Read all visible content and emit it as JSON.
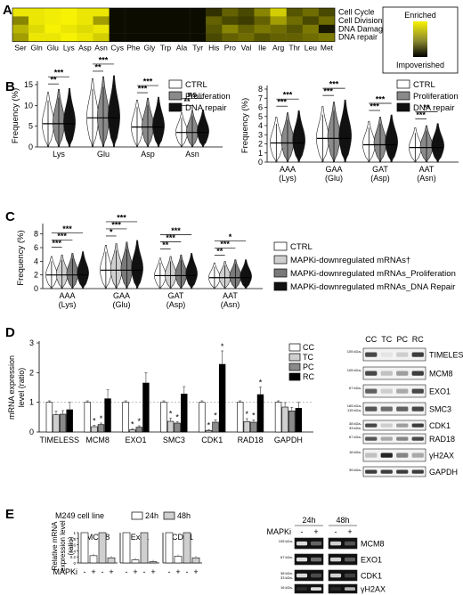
{
  "panel_letters": [
    "A",
    "B",
    "C",
    "D",
    "E"
  ],
  "panelA": {
    "amino_acids": [
      "Ser",
      "Gln",
      "Glu",
      "Lys",
      "Asp",
      "Asn",
      "Cys",
      "Phe",
      "Gly",
      "Trp",
      "Ala",
      "Tyr",
      "His",
      "Pro",
      "Val",
      "Ile",
      "Arg",
      "Thr",
      "Leu",
      "Met"
    ],
    "rows": [
      "Cell Cycle",
      "Cell Division",
      "DNA Damage",
      "DNA repair"
    ],
    "legend_top": "Enriched",
    "legend_bottom": "Impoverished",
    "colors": {
      "enriched": "#f7f204",
      "impoverished": "#000000"
    },
    "intensity": [
      [
        0.95,
        0.95,
        0.98,
        1.0,
        0.95,
        0.95,
        0.05,
        0.05,
        0.05,
        0.05,
        0.05,
        0.05,
        0.2,
        0.4,
        0.3,
        0.55,
        0.85,
        0.35,
        0.45,
        0.3
      ],
      [
        0.55,
        0.95,
        0.98,
        1.0,
        0.95,
        0.65,
        0.05,
        0.05,
        0.05,
        0.05,
        0.05,
        0.05,
        0.4,
        0.3,
        0.25,
        0.4,
        0.65,
        0.45,
        0.3,
        0.45
      ],
      [
        0.75,
        0.9,
        1.0,
        0.95,
        0.9,
        0.95,
        0.05,
        0.05,
        0.05,
        0.05,
        0.05,
        0.05,
        0.35,
        0.55,
        0.4,
        0.5,
        0.45,
        0.35,
        0.5,
        0.1
      ],
      [
        0.65,
        0.95,
        0.95,
        1.0,
        0.95,
        0.85,
        0.05,
        0.05,
        0.05,
        0.05,
        0.05,
        0.05,
        0.3,
        0.4,
        0.45,
        0.35,
        0.4,
        0.4,
        0.45,
        0.5
      ]
    ]
  },
  "panelB": {
    "legend": [
      "CTRL",
      "Proliferation",
      "DNA repair"
    ],
    "y_label": "Frequency (%)",
    "left": {
      "y_ticks": [
        "0",
        "5",
        "10",
        "15"
      ],
      "categories": [
        "Lys",
        "Glu",
        "Asp",
        "Asn"
      ],
      "medians": [
        [
          5.6,
          5.9,
          6.0
        ],
        [
          7.0,
          7.2,
          7.3
        ],
        [
          4.8,
          5.0,
          5.1
        ],
        [
          3.5,
          3.7,
          3.8
        ]
      ],
      "significance": [
        [
          "**",
          "***"
        ],
        [
          "**",
          "***"
        ],
        [
          "***",
          "***"
        ],
        [
          "**",
          "ns"
        ]
      ]
    },
    "right": {
      "y_ticks": [
        "0",
        "1",
        "2",
        "3",
        "4",
        "5",
        "6",
        "7",
        "8"
      ],
      "categories": [
        "AAA",
        "GAA",
        "GAT",
        "AAT"
      ],
      "sublabels": [
        "(Lys)",
        "(Glu)",
        "(Asp)",
        "(Asn)"
      ],
      "medians": [
        [
          2.1,
          2.3,
          2.4
        ],
        [
          2.6,
          2.8,
          2.9
        ],
        [
          1.9,
          2.1,
          2.2
        ],
        [
          1.6,
          1.7,
          1.8
        ]
      ],
      "significance": [
        [
          "***",
          "***"
        ],
        [
          "***",
          "***"
        ],
        [
          "***",
          "***"
        ],
        [
          "***",
          "**"
        ]
      ]
    }
  },
  "panelC": {
    "y_label": "Frequency (%)",
    "y_ticks": [
      "0",
      "2",
      "4",
      "6",
      "8"
    ],
    "categories": [
      "AAA",
      "GAA",
      "GAT",
      "AAT"
    ],
    "sublabels": [
      "(Lys)",
      "(Glu)",
      "(Asp)",
      "(Asn)"
    ],
    "legend": [
      "CTRL",
      "MAPKi-downregulated mRNAs†",
      "MAPKi-downregulated mRNAs_Proliferation",
      "MAPKi-downregulated mRNAs_DNA Repair"
    ],
    "medians": [
      [
        2.0,
        2.1,
        2.2,
        2.3
      ],
      [
        2.7,
        2.8,
        2.9,
        3.0
      ],
      [
        1.9,
        2.0,
        2.1,
        2.2
      ],
      [
        1.6,
        1.7,
        1.8,
        1.8
      ]
    ],
    "significance": [
      [
        "***",
        "***",
        "***"
      ],
      [
        "*",
        "***",
        "***"
      ],
      [
        "**",
        "***",
        "***"
      ],
      [
        "**",
        "***",
        "*"
      ]
    ]
  },
  "panelD": {
    "y_label": "mRNA expression level (ratio)",
    "y_ticks": [
      "0",
      "1",
      "2",
      "3"
    ],
    "legend": [
      "CC",
      "TC",
      "PC",
      "RC"
    ],
    "colors": [
      "#ffffff",
      "#cfcfcf",
      "#8a8a8a",
      "#000000"
    ],
    "genes": [
      "TIMELESS",
      "MCM8",
      "EXO1",
      "SMC3",
      "CDK1",
      "RAD18",
      "GAPDH"
    ],
    "values": [
      [
        1.0,
        0.58,
        0.6,
        0.75
      ],
      [
        1.0,
        0.18,
        0.25,
        1.12
      ],
      [
        1.0,
        0.07,
        0.16,
        1.65
      ],
      [
        1.0,
        0.36,
        0.3,
        1.28
      ],
      [
        1.0,
        0.05,
        0.33,
        2.28
      ],
      [
        1.0,
        0.35,
        0.33,
        1.26
      ],
      [
        1.0,
        0.84,
        0.71,
        0.8
      ]
    ],
    "errors": [
      [
        0.05,
        0.12,
        0.12,
        0.25
      ],
      [
        0.05,
        0.05,
        0.05,
        0.3
      ],
      [
        0.05,
        0.03,
        0.05,
        0.35
      ],
      [
        0.05,
        0.1,
        0.05,
        0.25
      ],
      [
        0.05,
        0.03,
        0.08,
        0.45
      ],
      [
        0.05,
        0.1,
        0.08,
        0.25
      ],
      [
        0.05,
        0.15,
        0.12,
        0.2
      ]
    ],
    "stars": [
      [
        "",
        "",
        "",
        ""
      ],
      [
        "",
        "*",
        "*",
        ""
      ],
      [
        "",
        "*",
        "*",
        ""
      ],
      [
        "",
        "*",
        "*",
        ""
      ],
      [
        "",
        "*",
        "*",
        "*"
      ],
      [
        "",
        "*",
        "*",
        "*"
      ],
      [
        "",
        "",
        "",
        ""
      ]
    ],
    "blot_lanes": [
      "CC",
      "TC",
      "PC",
      "RC"
    ],
    "blot_labels": [
      "TIMELESS",
      "MCM8",
      "EXO1",
      "SMC3",
      "CDK1",
      "RAD18",
      "γH2AX",
      "GAPDH"
    ],
    "blot_markers": [
      [
        "105 kDa-"
      ],
      [
        "105 kDa-"
      ],
      [
        "67 kDa-"
      ],
      [
        "165 kDa-",
        "115 kDa-"
      ],
      [
        "38 kDa-",
        "33 kDa-"
      ],
      [
        "67 kDa-"
      ],
      [
        "16 kDa-"
      ],
      [
        "39 kDa-"
      ]
    ]
  },
  "panelE": {
    "cell_line": "M249 cell line",
    "legend": [
      "24h",
      "48h"
    ],
    "y_label": "Relative mRNA expression level (ratio)",
    "treatment_label": "MAPKi",
    "signs": [
      "-",
      "+",
      "-",
      "+"
    ],
    "y_ticks": [
      "0",
      "0.2",
      "0.4",
      "0.6",
      "0.8",
      "1"
    ],
    "genes": [
      "MCM8",
      "Exo1",
      "CDK1"
    ],
    "values": [
      [
        1.0,
        0.24,
        1.0,
        0.17
      ],
      [
        1.0,
        0.1,
        1.0,
        0.04
      ],
      [
        1.0,
        0.22,
        1.0,
        0.17
      ]
    ],
    "blot_header": [
      "24h",
      "48h"
    ],
    "blot_labels": [
      "MCM8",
      "EXO1",
      "CDK1",
      "γH2AX"
    ],
    "blot_markers": [
      [
        "105 kDa-"
      ],
      [
        "67 kDa-"
      ],
      [
        "38 kDa-",
        "33 kDa-"
      ],
      [
        "16 kDa-"
      ]
    ]
  }
}
